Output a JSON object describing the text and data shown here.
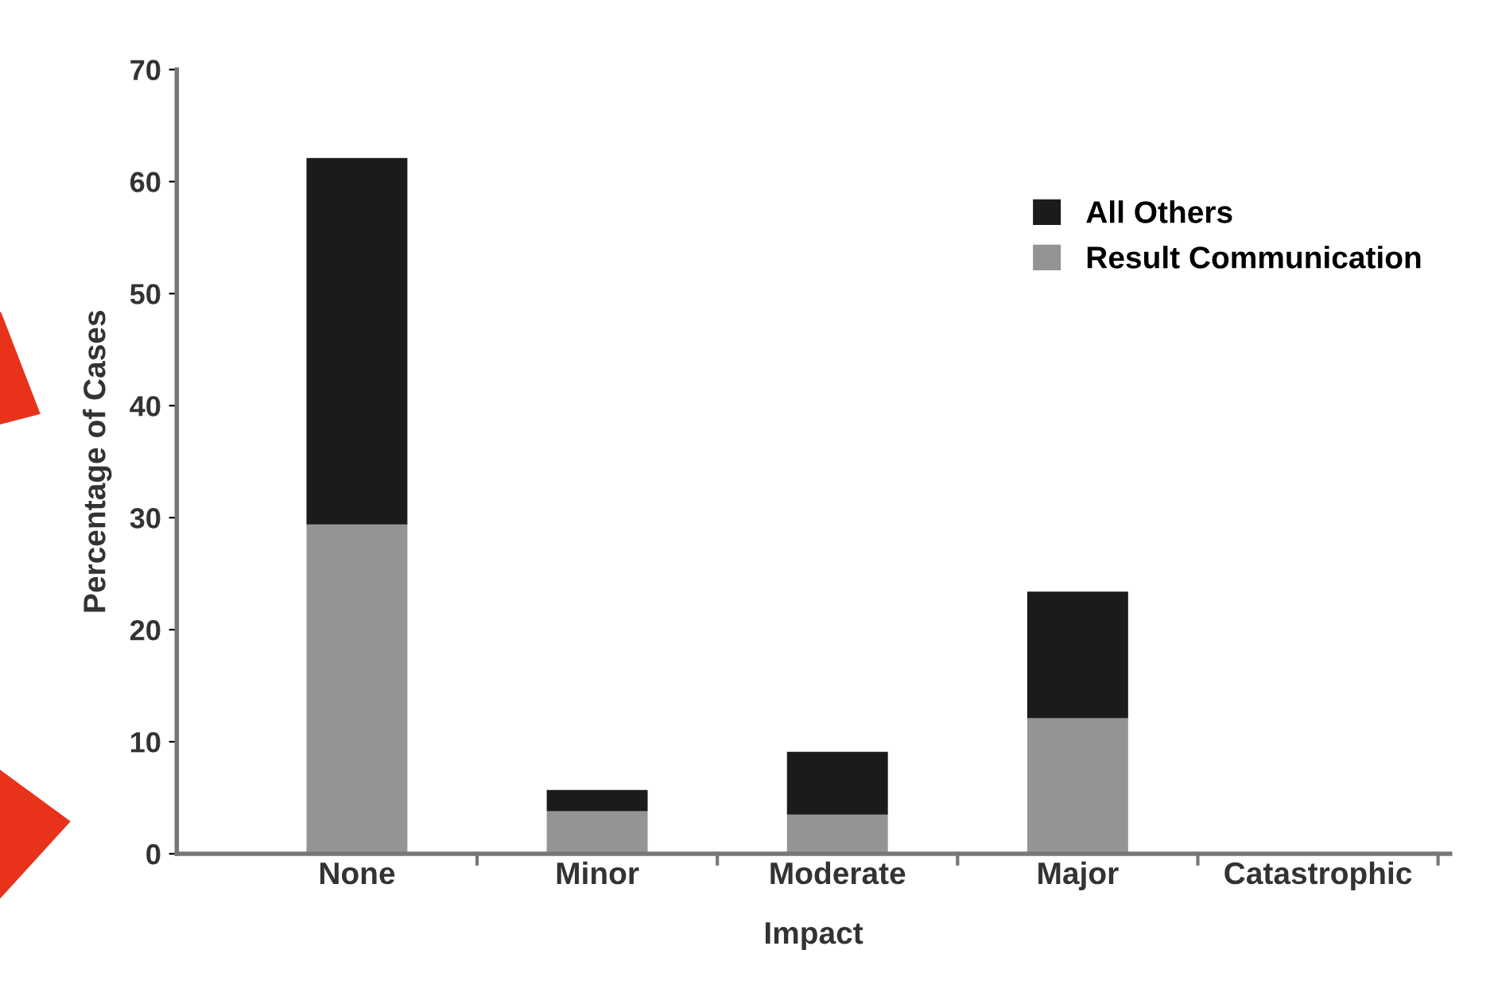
{
  "chart_data": {
    "type": "bar",
    "stacked": true,
    "xlabel": "Impact",
    "ylabel": "Percentage of Cases",
    "categories": [
      "None",
      "Minor",
      "Moderate",
      "Major",
      "Catastrophic"
    ],
    "series": [
      {
        "name": "Result Communication",
        "color": "#949494",
        "values": [
          29.4,
          3.8,
          3.5,
          12.1,
          0
        ]
      },
      {
        "name": "All Others",
        "color": "#1c1a1b",
        "values": [
          32.7,
          1.9,
          5.6,
          11.3,
          0
        ]
      }
    ],
    "ylim": [
      0,
      70
    ],
    "yticks": [
      0,
      10,
      20,
      30,
      40,
      50,
      60,
      70
    ],
    "grid": false,
    "legend": "top right"
  }
}
